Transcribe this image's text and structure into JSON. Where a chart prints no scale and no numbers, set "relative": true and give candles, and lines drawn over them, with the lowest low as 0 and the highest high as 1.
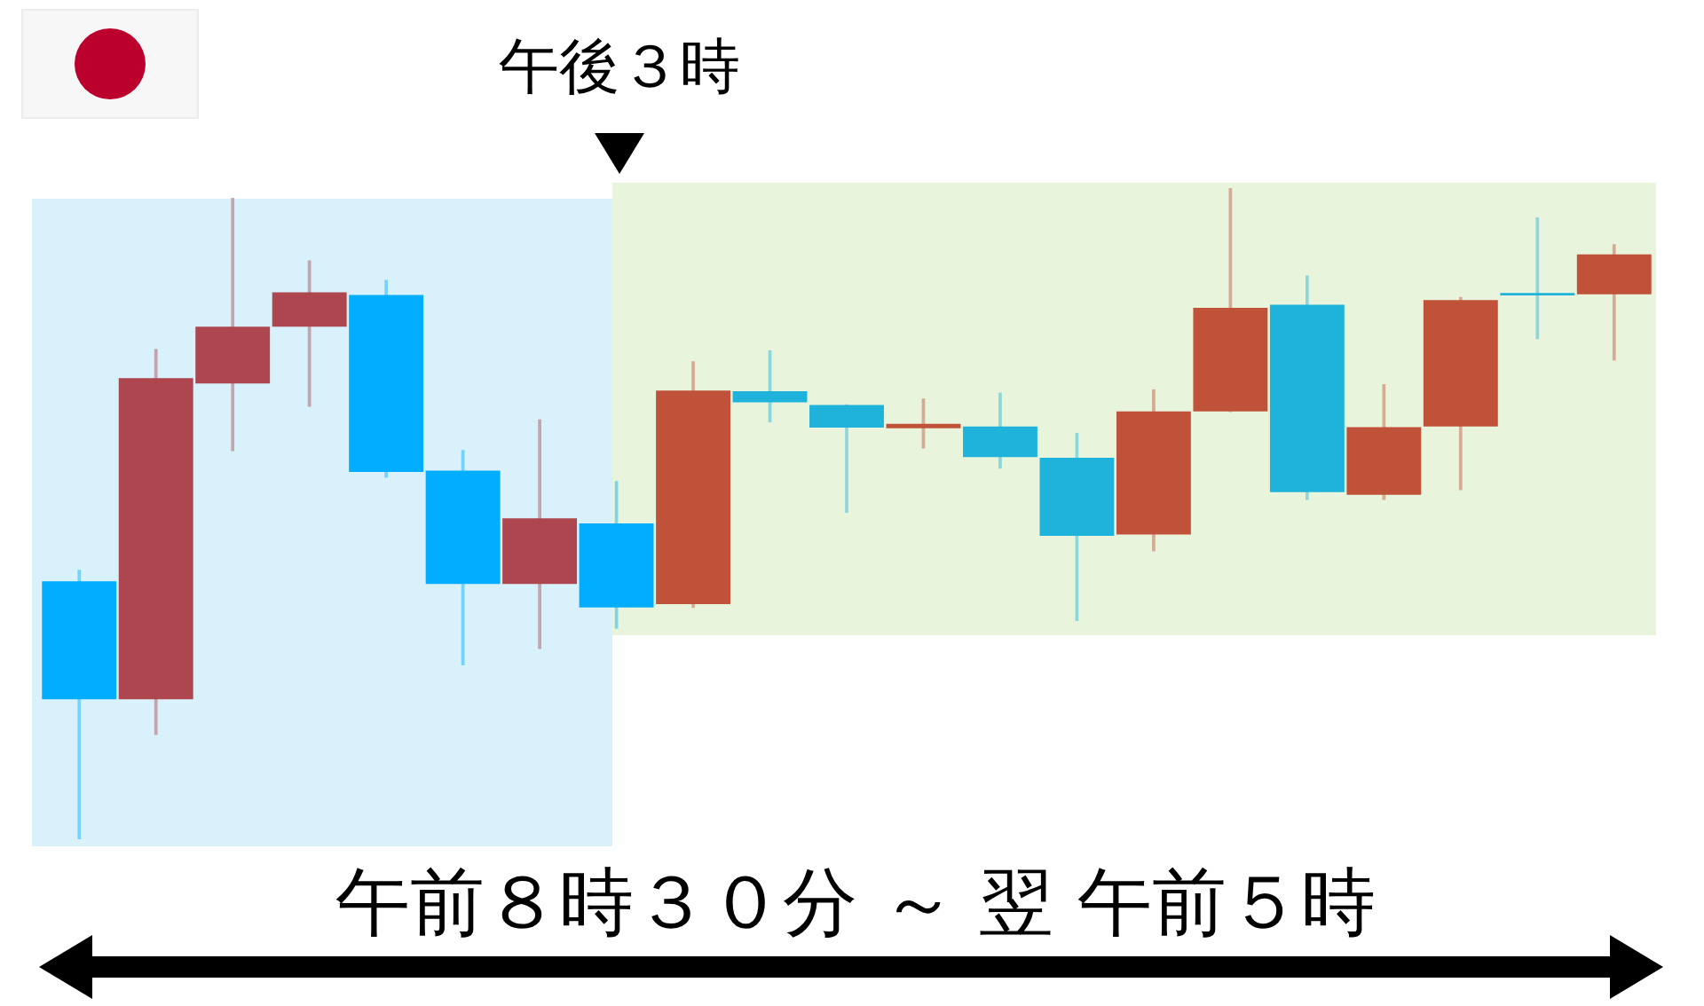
{
  "chart_data": {
    "type": "candlestick",
    "relative": true,
    "tick_labels": false,
    "categories": [
      null,
      null,
      null,
      null,
      null,
      null,
      null,
      null,
      null,
      null,
      null,
      null,
      null,
      null,
      null,
      null,
      null,
      null,
      null,
      null,
      null
    ],
    "ohlc": [
      [
        0.396,
        0.413,
        0,
        0.215
      ],
      [
        0.215,
        0.752,
        0.161,
        0.708
      ],
      [
        0.7,
        0.984,
        0.597,
        0.787
      ],
      [
        0.787,
        0.888,
        0.665,
        0.84
      ],
      [
        0.836,
        0.858,
        0.556,
        0.564
      ],
      [
        0.566,
        0.597,
        0.268,
        0.392
      ],
      [
        0.392,
        0.644,
        0.293,
        0.493
      ],
      [
        0.485,
        0.549,
        0.324,
        0.356
      ],
      [
        0.361,
        0.733,
        0.356,
        0.689
      ],
      [
        0.688,
        0.75,
        0.641,
        0.671
      ],
      [
        0.667,
        0.667,
        0.502,
        0.632
      ],
      [
        0.631,
        0.676,
        0.601,
        0.638
      ],
      [
        0.634,
        0.685,
        0.57,
        0.587
      ],
      [
        0.586,
        0.623,
        0.336,
        0.466
      ],
      [
        0.468,
        0.69,
        0.443,
        0.657
      ],
      [
        0.657,
        1,
        0.657,
        0.816
      ],
      [
        0.821,
        0.865,
        0.522,
        0.533
      ],
      [
        0.529,
        0.698,
        0.522,
        0.633
      ],
      [
        0.634,
        0.832,
        0.537,
        0.828
      ],
      [
        0.839,
        0.954,
        0.769,
        0.835
      ],
      [
        0.837,
        0.913,
        0.736,
        0.898
      ]
    ],
    "colors": [
      "#00adff",
      "#ae464f",
      "#ae464f",
      "#ae464f",
      "#00adff",
      "#00adff",
      "#ae464f",
      "#00adff",
      "#c1523a",
      "#1fb2db",
      "#1fb2db",
      "#c1523a",
      "#1fb2db",
      "#1fb2db",
      "#c1523a",
      "#c1523a",
      "#1fb2db",
      "#c1523a",
      "#c1523a",
      "#1fb2db",
      "#c1523a"
    ],
    "annotations": [
      "午後３時",
      "午前８時３０分 ～ 翌 午前５時"
    ]
  }
}
